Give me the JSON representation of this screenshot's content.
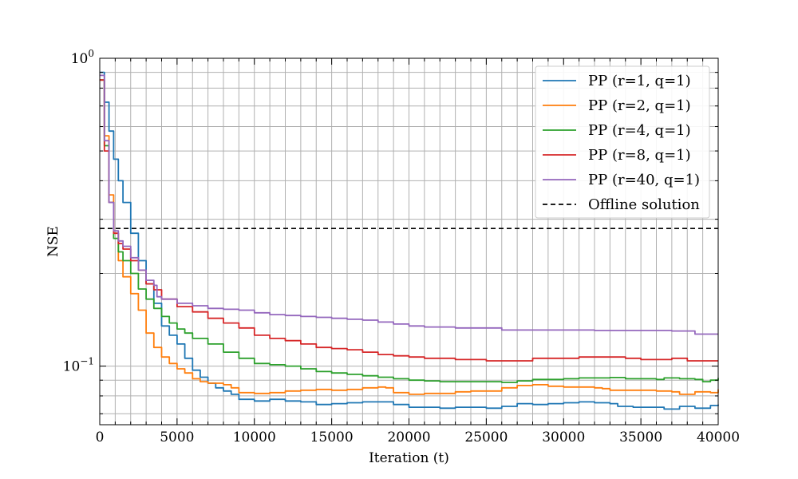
{
  "chart_data": {
    "type": "line",
    "xlabel": "Iteration (t)",
    "ylabel": "NSE",
    "xlim": [
      0,
      40000
    ],
    "ylim": [
      0.0645,
      1.0
    ],
    "yscale": "log",
    "grid": true,
    "legend_position": "top-right",
    "x_ticks": [
      0,
      5000,
      10000,
      15000,
      20000,
      25000,
      30000,
      35000,
      40000
    ],
    "y_ticks": [
      {
        "value": 1.0,
        "base": "10",
        "exp": "0"
      },
      {
        "value": 0.1,
        "base": "10",
        "exp": "−1"
      }
    ],
    "series": [
      {
        "name": "PP (r=1, q=1)",
        "color": "#1f77b4",
        "style": "solid",
        "points": [
          [
            0,
            0.9
          ],
          [
            300,
            0.72
          ],
          [
            600,
            0.58
          ],
          [
            900,
            0.47
          ],
          [
            1200,
            0.4
          ],
          [
            1500,
            0.34
          ],
          [
            2000,
            0.27
          ],
          [
            2500,
            0.22
          ],
          [
            3000,
            0.185
          ],
          [
            3500,
            0.16
          ],
          [
            4000,
            0.135
          ],
          [
            4500,
            0.126
          ],
          [
            5000,
            0.118
          ],
          [
            5500,
            0.106
          ],
          [
            6000,
            0.097
          ],
          [
            6500,
            0.092
          ],
          [
            7000,
            0.088
          ],
          [
            7500,
            0.085
          ],
          [
            8000,
            0.083
          ],
          [
            8500,
            0.081
          ],
          [
            9000,
            0.078
          ],
          [
            10000,
            0.077
          ],
          [
            11000,
            0.078
          ],
          [
            12000,
            0.077
          ],
          [
            13000,
            0.0765
          ],
          [
            14000,
            0.075
          ],
          [
            15000,
            0.0755
          ],
          [
            16000,
            0.076
          ],
          [
            17000,
            0.0765
          ],
          [
            18000,
            0.0765
          ],
          [
            19000,
            0.075
          ],
          [
            20000,
            0.0735
          ],
          [
            21000,
            0.0735
          ],
          [
            22000,
            0.073
          ],
          [
            23000,
            0.0735
          ],
          [
            24000,
            0.0735
          ],
          [
            25000,
            0.073
          ],
          [
            26000,
            0.074
          ],
          [
            27000,
            0.0755
          ],
          [
            28000,
            0.075
          ],
          [
            29000,
            0.0755
          ],
          [
            30000,
            0.076
          ],
          [
            31000,
            0.0765
          ],
          [
            32000,
            0.076
          ],
          [
            33000,
            0.0755
          ],
          [
            33500,
            0.074
          ],
          [
            34500,
            0.0735
          ],
          [
            35500,
            0.0735
          ],
          [
            36500,
            0.0725
          ],
          [
            37500,
            0.074
          ],
          [
            38500,
            0.073
          ],
          [
            39500,
            0.0745
          ],
          [
            40000,
            0.075
          ]
        ]
      },
      {
        "name": "PP (r=2, q=1)",
        "color": "#ff7f0e",
        "style": "solid",
        "points": [
          [
            0,
            0.85
          ],
          [
            300,
            0.56
          ],
          [
            600,
            0.36
          ],
          [
            900,
            0.27
          ],
          [
            1200,
            0.22
          ],
          [
            1500,
            0.195
          ],
          [
            2000,
            0.172
          ],
          [
            2500,
            0.152
          ],
          [
            3000,
            0.128
          ],
          [
            3500,
            0.115
          ],
          [
            4000,
            0.107
          ],
          [
            4500,
            0.102
          ],
          [
            5000,
            0.098
          ],
          [
            5500,
            0.095
          ],
          [
            6000,
            0.091
          ],
          [
            6500,
            0.089
          ],
          [
            7000,
            0.088
          ],
          [
            8000,
            0.087
          ],
          [
            8500,
            0.085
          ],
          [
            9000,
            0.082
          ],
          [
            10000,
            0.0815
          ],
          [
            11000,
            0.082
          ],
          [
            12000,
            0.083
          ],
          [
            13000,
            0.0835
          ],
          [
            14000,
            0.084
          ],
          [
            15000,
            0.0835
          ],
          [
            16000,
            0.084
          ],
          [
            17000,
            0.085
          ],
          [
            18000,
            0.0855
          ],
          [
            18500,
            0.085
          ],
          [
            19000,
            0.082
          ],
          [
            20000,
            0.081
          ],
          [
            21000,
            0.0815
          ],
          [
            22000,
            0.0815
          ],
          [
            23000,
            0.0825
          ],
          [
            24000,
            0.083
          ],
          [
            25000,
            0.083
          ],
          [
            26000,
            0.085
          ],
          [
            27000,
            0.0865
          ],
          [
            28000,
            0.087
          ],
          [
            29000,
            0.086
          ],
          [
            30000,
            0.0855
          ],
          [
            31000,
            0.0855
          ],
          [
            32000,
            0.085
          ],
          [
            32500,
            0.0845
          ],
          [
            33000,
            0.0835
          ],
          [
            34000,
            0.0835
          ],
          [
            35000,
            0.0835
          ],
          [
            36000,
            0.083
          ],
          [
            37000,
            0.0825
          ],
          [
            37500,
            0.081
          ],
          [
            38500,
            0.0825
          ],
          [
            39500,
            0.082
          ],
          [
            40000,
            0.084
          ]
        ]
      },
      {
        "name": "PP (r=4, q=1)",
        "color": "#2ca02c",
        "style": "solid",
        "points": [
          [
            0,
            0.85
          ],
          [
            300,
            0.52
          ],
          [
            600,
            0.34
          ],
          [
            900,
            0.26
          ],
          [
            1200,
            0.235
          ],
          [
            1500,
            0.22
          ],
          [
            2000,
            0.2
          ],
          [
            2500,
            0.178
          ],
          [
            3000,
            0.165
          ],
          [
            3500,
            0.154
          ],
          [
            4000,
            0.145
          ],
          [
            4500,
            0.138
          ],
          [
            5000,
            0.132
          ],
          [
            5500,
            0.128
          ],
          [
            6000,
            0.123
          ],
          [
            7000,
            0.118
          ],
          [
            8000,
            0.111
          ],
          [
            9000,
            0.106
          ],
          [
            10000,
            0.102
          ],
          [
            11000,
            0.101
          ],
          [
            12000,
            0.1
          ],
          [
            13000,
            0.098
          ],
          [
            14000,
            0.096
          ],
          [
            15000,
            0.095
          ],
          [
            16000,
            0.094
          ],
          [
            17000,
            0.093
          ],
          [
            18000,
            0.092
          ],
          [
            19000,
            0.091
          ],
          [
            20000,
            0.09
          ],
          [
            21000,
            0.0895
          ],
          [
            22000,
            0.089
          ],
          [
            23000,
            0.089
          ],
          [
            24000,
            0.089
          ],
          [
            25000,
            0.089
          ],
          [
            26000,
            0.0885
          ],
          [
            27000,
            0.0895
          ],
          [
            28000,
            0.0905
          ],
          [
            29000,
            0.0905
          ],
          [
            30000,
            0.091
          ],
          [
            31000,
            0.0915
          ],
          [
            32000,
            0.0915
          ],
          [
            33000,
            0.0918
          ],
          [
            34000,
            0.091
          ],
          [
            35000,
            0.091
          ],
          [
            36000,
            0.0905
          ],
          [
            36500,
            0.0915
          ],
          [
            37000,
            0.0915
          ],
          [
            37500,
            0.091
          ],
          [
            38500,
            0.0905
          ],
          [
            39000,
            0.089
          ],
          [
            39500,
            0.09
          ],
          [
            40000,
            0.0915
          ]
        ]
      },
      {
        "name": "PP (r=8, q=1)",
        "color": "#d62728",
        "style": "solid",
        "points": [
          [
            0,
            0.85
          ],
          [
            300,
            0.5
          ],
          [
            600,
            0.34
          ],
          [
            900,
            0.27
          ],
          [
            1200,
            0.25
          ],
          [
            1500,
            0.24
          ],
          [
            2000,
            0.22
          ],
          [
            2500,
            0.205
          ],
          [
            3000,
            0.185
          ],
          [
            3500,
            0.177
          ],
          [
            4000,
            0.165
          ],
          [
            5000,
            0.156
          ],
          [
            6000,
            0.15
          ],
          [
            7000,
            0.143
          ],
          [
            8000,
            0.138
          ],
          [
            9000,
            0.133
          ],
          [
            10000,
            0.126
          ],
          [
            11000,
            0.123
          ],
          [
            12000,
            0.121
          ],
          [
            13000,
            0.118
          ],
          [
            14000,
            0.115
          ],
          [
            15000,
            0.114
          ],
          [
            16000,
            0.113
          ],
          [
            17000,
            0.111
          ],
          [
            18000,
            0.109
          ],
          [
            19000,
            0.108
          ],
          [
            20000,
            0.107
          ],
          [
            21000,
            0.106
          ],
          [
            22000,
            0.106
          ],
          [
            23000,
            0.105
          ],
          [
            24000,
            0.105
          ],
          [
            25000,
            0.104
          ],
          [
            26000,
            0.104
          ],
          [
            27000,
            0.104
          ],
          [
            28000,
            0.106
          ],
          [
            29000,
            0.106
          ],
          [
            30000,
            0.106
          ],
          [
            31000,
            0.107
          ],
          [
            32000,
            0.107
          ],
          [
            33000,
            0.107
          ],
          [
            34000,
            0.106
          ],
          [
            35000,
            0.105
          ],
          [
            36000,
            0.105
          ],
          [
            37000,
            0.106
          ],
          [
            38000,
            0.104
          ],
          [
            39000,
            0.104
          ],
          [
            40000,
            0.104
          ]
        ]
      },
      {
        "name": "PP (r=40, q=1)",
        "color": "#9467bd",
        "style": "solid",
        "points": [
          [
            0,
            0.88
          ],
          [
            300,
            0.54
          ],
          [
            600,
            0.34
          ],
          [
            900,
            0.275
          ],
          [
            1200,
            0.255
          ],
          [
            1500,
            0.245
          ],
          [
            2000,
            0.225
          ],
          [
            2500,
            0.205
          ],
          [
            3000,
            0.19
          ],
          [
            3500,
            0.183
          ],
          [
            3700,
            0.168
          ],
          [
            4000,
            0.165
          ],
          [
            5000,
            0.16
          ],
          [
            6000,
            0.157
          ],
          [
            7000,
            0.154
          ],
          [
            8000,
            0.153
          ],
          [
            9000,
            0.152
          ],
          [
            10000,
            0.149
          ],
          [
            11000,
            0.147
          ],
          [
            12000,
            0.146
          ],
          [
            13000,
            0.145
          ],
          [
            14000,
            0.144
          ],
          [
            15000,
            0.143
          ],
          [
            16000,
            0.142
          ],
          [
            17000,
            0.141
          ],
          [
            18000,
            0.139
          ],
          [
            19000,
            0.137
          ],
          [
            20000,
            0.135
          ],
          [
            21000,
            0.134
          ],
          [
            22000,
            0.134
          ],
          [
            23000,
            0.133
          ],
          [
            24000,
            0.133
          ],
          [
            25000,
            0.133
          ],
          [
            26000,
            0.131
          ],
          [
            27000,
            0.131
          ],
          [
            28000,
            0.131
          ],
          [
            29000,
            0.131
          ],
          [
            30000,
            0.131
          ],
          [
            31000,
            0.131
          ],
          [
            32000,
            0.1305
          ],
          [
            33000,
            0.1305
          ],
          [
            34000,
            0.1305
          ],
          [
            35000,
            0.1305
          ],
          [
            36000,
            0.1305
          ],
          [
            37000,
            0.13
          ],
          [
            38000,
            0.13
          ],
          [
            38500,
            0.127
          ],
          [
            40000,
            0.127
          ]
        ]
      },
      {
        "name": "Offline solution",
        "color": "#000000",
        "style": "dashed",
        "points": [
          [
            0,
            0.28
          ],
          [
            40000,
            0.28
          ]
        ]
      }
    ]
  }
}
